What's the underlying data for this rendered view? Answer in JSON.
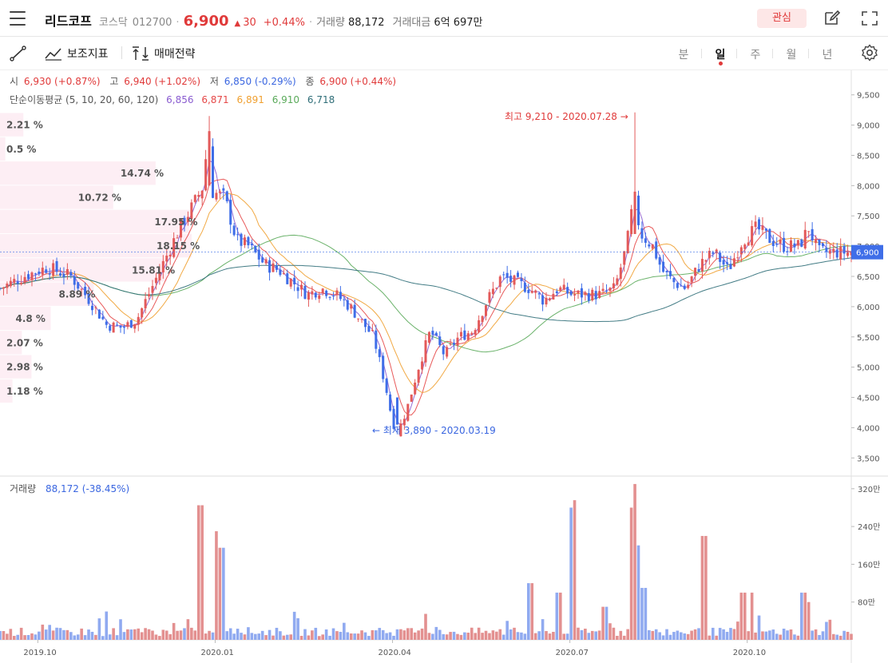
{
  "header": {
    "stock_name": "리드코프",
    "market": "코스닥",
    "code": "012700",
    "price": "6,900",
    "change": "30",
    "change_pct": "+0.44%",
    "volume_label": "거래량",
    "volume": "88,172",
    "amount_label": "거래대금",
    "amount": "6억 697만",
    "favorite_label": "관심"
  },
  "toolbar": {
    "indicators_label": "보조지표",
    "strategy_label": "매매전략",
    "periods": [
      "분",
      "일",
      "주",
      "월",
      "년"
    ],
    "active_period": "일"
  },
  "ohlc": {
    "open_label": "시",
    "open": "6,930 (+0.87%)",
    "high_label": "고",
    "high": "6,940 (+1.02%)",
    "low_label": "저",
    "low": "6,850 (-0.29%)",
    "close_label": "종",
    "close": "6,900 (+0.44%)"
  },
  "ma_legend": {
    "label": "단순이동평균 (5, 10, 20, 60, 120)",
    "values": [
      "6,856",
      "6,871",
      "6,891",
      "6,910",
      "6,718"
    ],
    "colors": [
      "#8a5cd0",
      "#e54848",
      "#f0a030",
      "#5aaa5a",
      "#2f6e78"
    ]
  },
  "annotations": {
    "high": "최고 9,210 - 2020.07.28",
    "low": "최저 3,890 - 2020.03.19"
  },
  "volume_panel": {
    "label": "거래량",
    "value": "88,172 (-38.45%)"
  },
  "colors": {
    "up": "#e03a3a",
    "down": "#3a66e0",
    "up_candle": "#e35a5a",
    "down_candle": "#3f6ee8",
    "up_volume": "#e39090",
    "down_volume": "#90aaf0",
    "profile": "#fdeef4"
  },
  "chart_data": [
    {
      "type": "candlestick",
      "ylim": [
        3200,
        9800
      ],
      "yticks": [
        "9,500",
        "9,000",
        "8,500",
        "8,000",
        "7,500",
        "7,000",
        "6,500",
        "6,000",
        "5,500",
        "5,000",
        "4,500",
        "4,000",
        "3,500"
      ],
      "ytick_values": [
        9500,
        9000,
        8500,
        8000,
        7500,
        7000,
        6500,
        6000,
        5500,
        5000,
        4500,
        4000,
        3500
      ],
      "xticks": [
        "2019.10",
        "2020.01",
        "2020.04",
        "2020.07",
        "2020.10"
      ],
      "last_price_label": "6,900",
      "last_price": 6900,
      "close_path": [
        [
          0,
          6300
        ],
        [
          10,
          6500
        ],
        [
          20,
          6650
        ],
        [
          30,
          6500
        ],
        [
          38,
          6100
        ],
        [
          45,
          5700
        ],
        [
          52,
          5650
        ],
        [
          58,
          5800
        ],
        [
          64,
          6300
        ],
        [
          70,
          6800
        ],
        [
          76,
          7300
        ],
        [
          82,
          7700
        ],
        [
          86,
          8000
        ],
        [
          88,
          8900
        ],
        [
          90,
          7900
        ],
        [
          95,
          7800
        ],
        [
          100,
          7100
        ],
        [
          105,
          7000
        ],
        [
          112,
          6700
        ],
        [
          118,
          6600
        ],
        [
          124,
          6400
        ],
        [
          130,
          6200
        ],
        [
          136,
          6300
        ],
        [
          142,
          6200
        ],
        [
          148,
          6000
        ],
        [
          154,
          5700
        ],
        [
          158,
          5500
        ],
        [
          163,
          4700
        ],
        [
          166,
          4100
        ],
        [
          168,
          3900
        ],
        [
          172,
          4300
        ],
        [
          177,
          5000
        ],
        [
          182,
          5600
        ],
        [
          188,
          5200
        ],
        [
          194,
          5500
        ],
        [
          200,
          5600
        ],
        [
          206,
          6100
        ],
        [
          212,
          6500
        ],
        [
          218,
          6400
        ],
        [
          224,
          6300
        ],
        [
          230,
          6100
        ],
        [
          236,
          6300
        ],
        [
          242,
          6200
        ],
        [
          248,
          6200
        ],
        [
          254,
          6200
        ],
        [
          260,
          6300
        ],
        [
          265,
          7000
        ],
        [
          268,
          7800
        ],
        [
          271,
          7200
        ],
        [
          276,
          7000
        ],
        [
          280,
          6600
        ],
        [
          285,
          6400
        ],
        [
          290,
          6300
        ],
        [
          296,
          6700
        ],
        [
          302,
          6900
        ],
        [
          308,
          6600
        ],
        [
          314,
          7100
        ],
        [
          320,
          7300
        ],
        [
          326,
          7100
        ],
        [
          332,
          7000
        ],
        [
          338,
          7000
        ],
        [
          342,
          7300
        ],
        [
          346,
          6900
        ],
        [
          352,
          6900
        ],
        [
          356,
          6900
        ],
        [
          360,
          6900
        ]
      ],
      "volume_profile": [
        {
          "label": "2.21 %",
          "price_from": 9200,
          "price_to": 8800,
          "pct": 2.21
        },
        {
          "label": "0.5 %",
          "price_from": 8800,
          "price_to": 8400,
          "pct": 0.5
        },
        {
          "label": "14.74 %",
          "price_from": 8400,
          "price_to": 8000,
          "pct": 14.74
        },
        {
          "label": "10.72 %",
          "price_from": 8000,
          "price_to": 7600,
          "pct": 10.72
        },
        {
          "label": "17.95 %",
          "price_from": 7600,
          "price_to": 7200,
          "pct": 17.95
        },
        {
          "label": "18.15 %",
          "price_from": 7200,
          "price_to": 6800,
          "pct": 18.15
        },
        {
          "label": "15.81 %",
          "price_from": 6800,
          "price_to": 6400,
          "pct": 15.81
        },
        {
          "label": "8.89 %",
          "price_from": 6400,
          "price_to": 6000,
          "pct": 8.89
        },
        {
          "label": "4.8 %",
          "price_from": 6000,
          "price_to": 5600,
          "pct": 4.8
        },
        {
          "label": "2.07 %",
          "price_from": 5600,
          "price_to": 5200,
          "pct": 2.07
        },
        {
          "label": "2.98 %",
          "price_from": 5200,
          "price_to": 4800,
          "pct": 2.98
        },
        {
          "label": "1.18 %",
          "price_from": 4800,
          "price_to": 4400,
          "pct": 1.18
        }
      ],
      "high_point": {
        "date": "2020.07.28",
        "value": 9210
      },
      "low_point": {
        "date": "2020.03.19",
        "value": 3890
      }
    },
    {
      "type": "bar",
      "title": "거래량",
      "ylim": [
        0,
        3400000
      ],
      "yticks": [
        "320만",
        "240만",
        "160만",
        "80만"
      ],
      "ytick_values": [
        3200000,
        2400000,
        1600000,
        800000
      ],
      "spikes": [
        [
          45,
          600000
        ],
        [
          85,
          2850000
        ],
        [
          92,
          2300000
        ],
        [
          94,
          1950000
        ],
        [
          180,
          550000
        ],
        [
          224,
          1200000
        ],
        [
          236,
          1000000
        ],
        [
          242,
          2800000
        ],
        [
          256,
          700000
        ],
        [
          268,
          2800000
        ],
        [
          269,
          3300000
        ],
        [
          270,
          2000000
        ],
        [
          272,
          1100000
        ],
        [
          298,
          2200000
        ],
        [
          314,
          1000000
        ],
        [
          318,
          1000000
        ],
        [
          340,
          1000000
        ],
        [
          342,
          800000
        ]
      ]
    }
  ]
}
